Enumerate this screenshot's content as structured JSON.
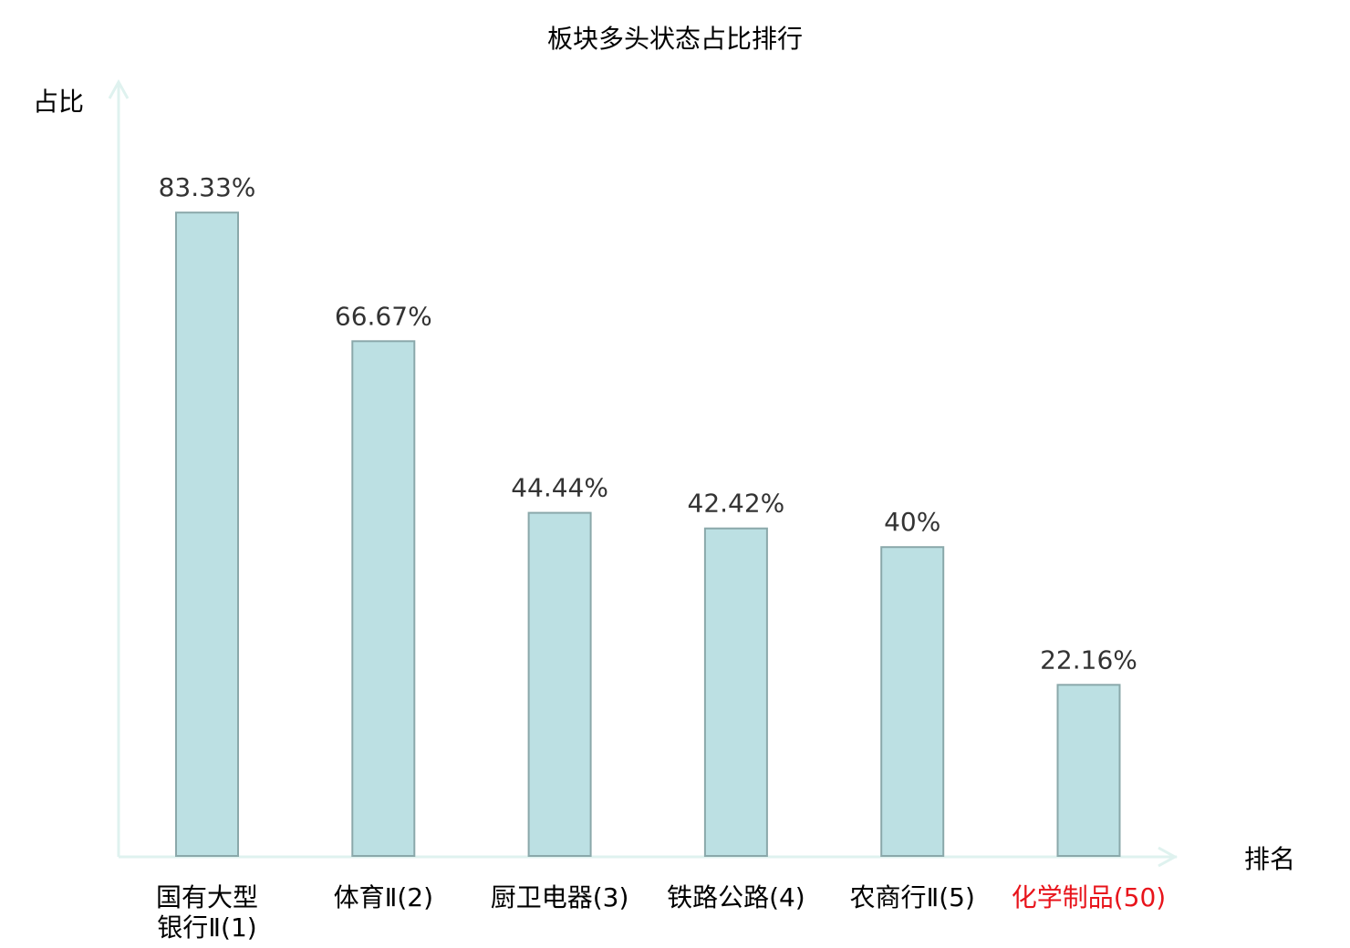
{
  "chart_data": {
    "type": "bar",
    "title": "板块多头状态占比排行",
    "xlabel": "排名",
    "ylabel": "占比",
    "categories": [
      [
        "国有大型",
        "银行Ⅱ(1)"
      ],
      [
        "体育Ⅱ(2)"
      ],
      [
        "厨卫电器(3)"
      ],
      [
        "铁路公路(4)"
      ],
      [
        "农商行Ⅱ(5)"
      ],
      [
        "化学制品(50)"
      ]
    ],
    "values": [
      83.33,
      66.67,
      44.44,
      42.42,
      40,
      22.16
    ],
    "labels": [
      "83.33%",
      "66.67%",
      "44.44%",
      "42.42%",
      "40%",
      "22.16%"
    ],
    "highlight_index": 5,
    "ylim": [
      0,
      100
    ],
    "grid": false,
    "colors": {
      "bar": "#bce0e3",
      "bar_stroke": "#8aa8aa",
      "axis": "#dff2ef",
      "highlight": "#e8141b",
      "text": "#000000",
      "label": "#333333"
    }
  }
}
